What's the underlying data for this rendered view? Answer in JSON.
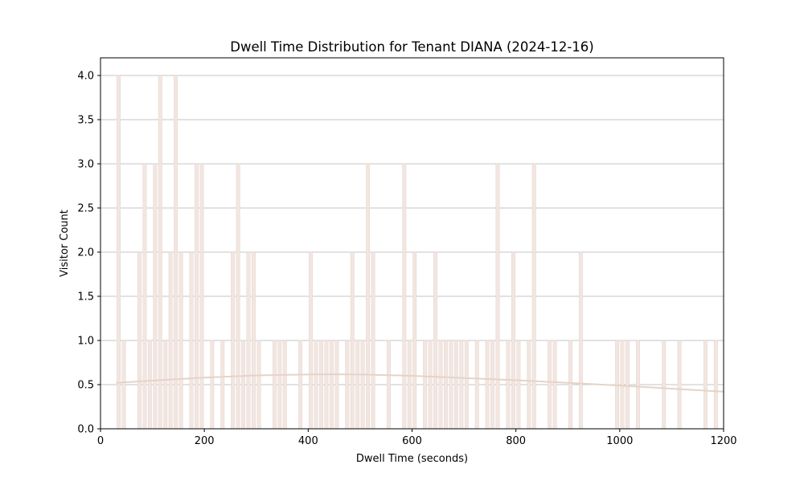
{
  "chart_data": {
    "type": "bar",
    "title": "Dwell Time Distribution for Tenant DIANA (2024-12-16)",
    "xlabel": "Dwell Time (seconds)",
    "ylabel": "Visitor Count",
    "xlim": [
      0,
      1200
    ],
    "ylim": [
      0,
      4.2
    ],
    "x_ticks": [
      0,
      200,
      400,
      600,
      800,
      1000,
      1200
    ],
    "x_tick_labels": [
      "0",
      "200",
      "400",
      "600",
      "800",
      "1000",
      "1200"
    ],
    "y_ticks": [
      0.0,
      0.5,
      1.0,
      1.5,
      2.0,
      2.5,
      3.0,
      3.5,
      4.0
    ],
    "y_tick_labels": [
      "0.0",
      "0.5",
      "1.0",
      "1.5",
      "2.0",
      "2.5",
      "3.0",
      "3.5",
      "4.0"
    ],
    "grid": {
      "y": true,
      "x": false
    },
    "bin_width": 10,
    "bar_color": "#f2e6e1",
    "bar_edge_color": "#e3cec6",
    "bins": [
      {
        "x0": 30,
        "count": 4
      },
      {
        "x0": 40,
        "count": 1
      },
      {
        "x0": 70,
        "count": 2
      },
      {
        "x0": 80,
        "count": 3
      },
      {
        "x0": 90,
        "count": 1
      },
      {
        "x0": 100,
        "count": 3
      },
      {
        "x0": 110,
        "count": 4
      },
      {
        "x0": 120,
        "count": 1
      },
      {
        "x0": 130,
        "count": 2
      },
      {
        "x0": 140,
        "count": 4
      },
      {
        "x0": 150,
        "count": 2
      },
      {
        "x0": 170,
        "count": 2
      },
      {
        "x0": 180,
        "count": 3
      },
      {
        "x0": 190,
        "count": 3
      },
      {
        "x0": 210,
        "count": 1
      },
      {
        "x0": 230,
        "count": 1
      },
      {
        "x0": 250,
        "count": 2
      },
      {
        "x0": 260,
        "count": 3
      },
      {
        "x0": 270,
        "count": 1
      },
      {
        "x0": 280,
        "count": 2
      },
      {
        "x0": 290,
        "count": 2
      },
      {
        "x0": 300,
        "count": 1
      },
      {
        "x0": 330,
        "count": 1
      },
      {
        "x0": 340,
        "count": 1
      },
      {
        "x0": 350,
        "count": 1
      },
      {
        "x0": 380,
        "count": 1
      },
      {
        "x0": 400,
        "count": 2
      },
      {
        "x0": 410,
        "count": 1
      },
      {
        "x0": 420,
        "count": 1
      },
      {
        "x0": 430,
        "count": 1
      },
      {
        "x0": 440,
        "count": 1
      },
      {
        "x0": 450,
        "count": 1
      },
      {
        "x0": 470,
        "count": 1
      },
      {
        "x0": 480,
        "count": 2
      },
      {
        "x0": 490,
        "count": 1
      },
      {
        "x0": 500,
        "count": 1
      },
      {
        "x0": 510,
        "count": 3
      },
      {
        "x0": 520,
        "count": 2
      },
      {
        "x0": 550,
        "count": 1
      },
      {
        "x0": 580,
        "count": 3
      },
      {
        "x0": 590,
        "count": 1
      },
      {
        "x0": 600,
        "count": 2
      },
      {
        "x0": 620,
        "count": 1
      },
      {
        "x0": 630,
        "count": 1
      },
      {
        "x0": 640,
        "count": 2
      },
      {
        "x0": 650,
        "count": 1
      },
      {
        "x0": 660,
        "count": 1
      },
      {
        "x0": 670,
        "count": 1
      },
      {
        "x0": 680,
        "count": 1
      },
      {
        "x0": 690,
        "count": 1
      },
      {
        "x0": 700,
        "count": 1
      },
      {
        "x0": 720,
        "count": 1
      },
      {
        "x0": 740,
        "count": 1
      },
      {
        "x0": 750,
        "count": 1
      },
      {
        "x0": 760,
        "count": 3
      },
      {
        "x0": 780,
        "count": 1
      },
      {
        "x0": 790,
        "count": 2
      },
      {
        "x0": 800,
        "count": 1
      },
      {
        "x0": 820,
        "count": 1
      },
      {
        "x0": 830,
        "count": 3
      },
      {
        "x0": 860,
        "count": 1
      },
      {
        "x0": 870,
        "count": 1
      },
      {
        "x0": 900,
        "count": 1
      },
      {
        "x0": 920,
        "count": 2
      },
      {
        "x0": 990,
        "count": 1
      },
      {
        "x0": 1000,
        "count": 1
      },
      {
        "x0": 1010,
        "count": 1
      },
      {
        "x0": 1030,
        "count": 1
      },
      {
        "x0": 1080,
        "count": 1
      },
      {
        "x0": 1110,
        "count": 1
      },
      {
        "x0": 1160,
        "count": 1
      },
      {
        "x0": 1180,
        "count": 1
      }
    ],
    "kde_line": {
      "color": "#e6d3c8",
      "x": [
        30,
        100,
        200,
        300,
        400,
        450,
        500,
        600,
        700,
        800,
        900,
        1000,
        1100,
        1200
      ],
      "y": [
        0.52,
        0.545,
        0.58,
        0.605,
        0.615,
        0.617,
        0.615,
        0.6,
        0.575,
        0.55,
        0.52,
        0.49,
        0.455,
        0.42
      ]
    }
  }
}
